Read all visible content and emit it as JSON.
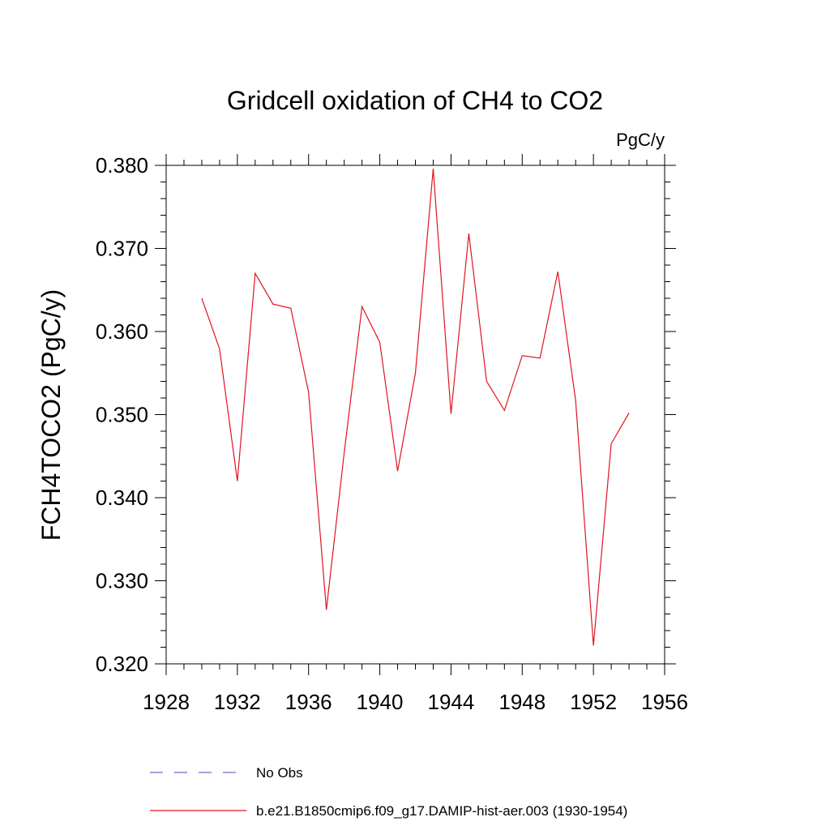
{
  "chart_data": {
    "type": "line",
    "title": "Gridcell oxidation of CH4 to CO2",
    "units_label": "PgC/y",
    "ylabel": "FCH4TOCO2  (PgC/y)",
    "xlabel": "",
    "xlim": [
      1928,
      1956
    ],
    "ylim": [
      0.32,
      0.38
    ],
    "x_ticks": [
      1928,
      1932,
      1936,
      1940,
      1944,
      1948,
      1952,
      1956
    ],
    "x_tick_labels": [
      "1928",
      "1932",
      "1936",
      "1940",
      "1944",
      "1948",
      "1952",
      "1956"
    ],
    "y_ticks": [
      0.32,
      0.33,
      0.34,
      0.35,
      0.36,
      0.37,
      0.38
    ],
    "y_tick_labels": [
      "0.320",
      "0.330",
      "0.340",
      "0.350",
      "0.360",
      "0.370",
      "0.380"
    ],
    "grid": false,
    "legend_position": "bottom",
    "series": [
      {
        "name": "No Obs",
        "color": "#6a6ad0",
        "dash": "dashed",
        "x": [],
        "values": []
      },
      {
        "name": "b.e21.B1850cmip6.f09_g17.DAMIP-hist-aer.003 (1930-1954)",
        "color": "#e0141e",
        "dash": "solid",
        "x": [
          1930,
          1931,
          1932,
          1933,
          1934,
          1935,
          1936,
          1937,
          1938,
          1939,
          1940,
          1941,
          1942,
          1943,
          1944,
          1945,
          1946,
          1947,
          1948,
          1949,
          1950,
          1951,
          1952,
          1953,
          1954
        ],
        "values": [
          0.364,
          0.3579,
          0.342,
          0.367,
          0.3633,
          0.3628,
          0.3527,
          0.3265,
          0.3454,
          0.363,
          0.3587,
          0.3432,
          0.355,
          0.3796,
          0.3501,
          0.3718,
          0.354,
          0.3505,
          0.3571,
          0.3568,
          0.3672,
          0.3517,
          0.3222,
          0.3465,
          0.3502
        ]
      }
    ]
  }
}
